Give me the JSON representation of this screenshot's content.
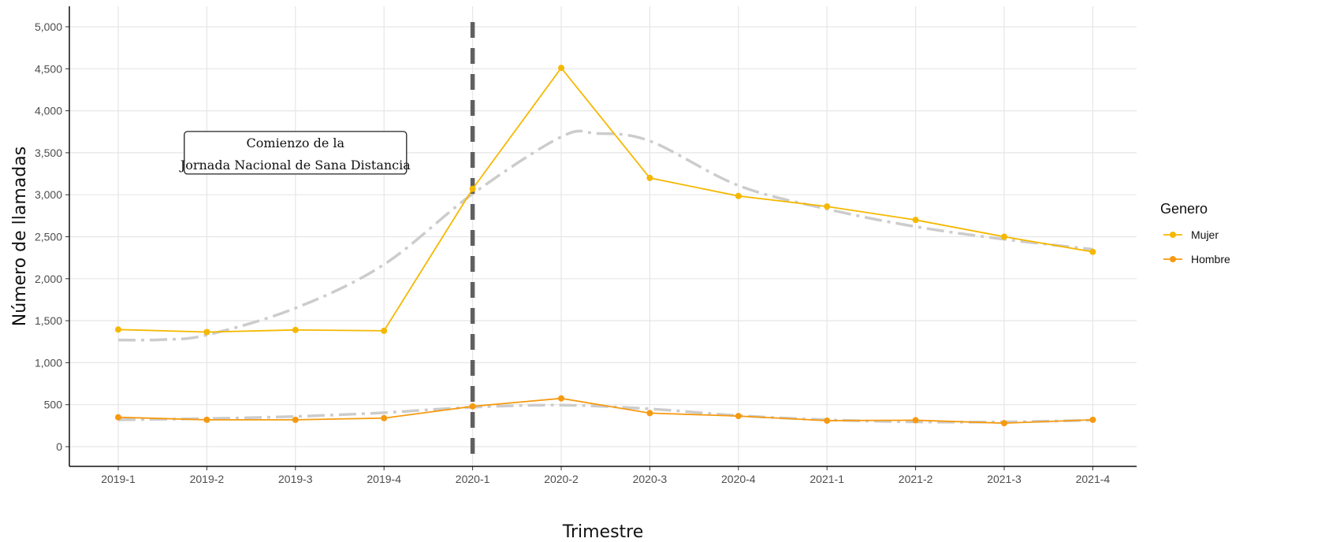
{
  "chart_data": {
    "type": "line",
    "xlabel": "Trimestre",
    "ylabel": "Número de llamadas",
    "categories": [
      "2019-1",
      "2019-2",
      "2019-3",
      "2019-4",
      "2020-1",
      "2020-2",
      "2020-3",
      "2020-4",
      "2021-1",
      "2021-2",
      "2021-3",
      "2021-4"
    ],
    "ylim": [
      -250,
      5250
    ],
    "yticks": [
      0,
      500,
      1000,
      1500,
      2000,
      2500,
      3000,
      3500,
      4000,
      4500,
      5000
    ],
    "ytick_labels": [
      "0",
      "500",
      "1,000",
      "1,500",
      "2,000",
      "2,500",
      "3,000",
      "3,500",
      "4,000",
      "4,500",
      "5,000"
    ],
    "grid": true,
    "legend": {
      "title": "Genero",
      "position": "right"
    },
    "series": [
      {
        "name": "Mujer",
        "color": "#F5B800",
        "values": [
          1395,
          1365,
          1390,
          1380,
          3070,
          4510,
          3200,
          2985,
          2860,
          2700,
          2500,
          2320
        ]
      },
      {
        "name": "Hombre",
        "color": "#F59A10",
        "values": [
          350,
          320,
          320,
          340,
          480,
          575,
          400,
          365,
          310,
          315,
          280,
          320
        ]
      }
    ],
    "smooth_trends": [
      {
        "series": "Mujer",
        "color": "#cccccc",
        "style": "dashdot",
        "points": [
          [
            0,
            1270
          ],
          [
            0.5,
            1275
          ],
          [
            1,
            1330
          ],
          [
            2,
            1650
          ],
          [
            3,
            2170
          ],
          [
            4,
            3010
          ],
          [
            5,
            3690
          ],
          [
            5.4,
            3730
          ],
          [
            6,
            3640
          ],
          [
            7,
            3110
          ],
          [
            8,
            2830
          ],
          [
            9,
            2620
          ],
          [
            10,
            2470
          ],
          [
            11,
            2350
          ]
        ]
      },
      {
        "series": "Hombre",
        "color": "#cccccc",
        "style": "dashdot",
        "points": [
          [
            0,
            320
          ],
          [
            1,
            335
          ],
          [
            2,
            360
          ],
          [
            3,
            405
          ],
          [
            4,
            470
          ],
          [
            5,
            495
          ],
          [
            6,
            450
          ],
          [
            7,
            370
          ],
          [
            8,
            320
          ],
          [
            9,
            295
          ],
          [
            10,
            295
          ],
          [
            11,
            315
          ]
        ]
      }
    ],
    "vline": {
      "category": "2020-1",
      "color": "#606060",
      "style": "dashed"
    },
    "annotation": {
      "lines": [
        "Comienzo de la",
        "Jornada Nacional de Sana Distancia"
      ],
      "anchor_category": "2019-3",
      "anchor_value": 3500
    }
  }
}
